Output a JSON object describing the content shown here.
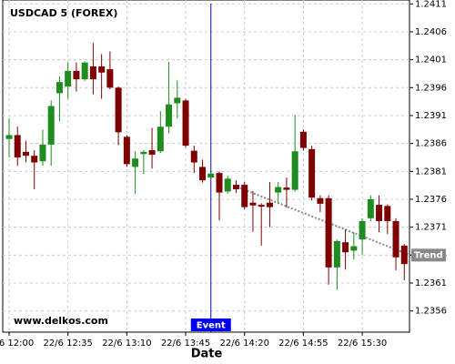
{
  "chart_data": {
    "type": "candlestick",
    "title": "USDCAD 5 (FOREX)",
    "watermark": "www.delkos.com",
    "x_label": "Date",
    "categories": [
      "22/6 12:00",
      null,
      null,
      null,
      null,
      null,
      null,
      "22/6 12:35",
      null,
      null,
      null,
      null,
      null,
      null,
      "22/6 13:10",
      null,
      null,
      null,
      null,
      null,
      null,
      "22/6 13:45",
      null,
      null,
      null,
      null,
      null,
      null,
      "22/6 14:20",
      null,
      null,
      null,
      null,
      null,
      null,
      "22/6 14:55",
      null,
      null,
      null,
      null,
      null,
      null,
      "22/6 15:30",
      null,
      null,
      null,
      null,
      null
    ],
    "open": [
      1.23868,
      1.23875,
      1.23845,
      1.23838,
      1.23828,
      1.23858,
      1.2395,
      1.23962,
      1.2399,
      1.23975,
      1.23998,
      1.23998,
      1.23993,
      1.2396,
      1.23872,
      1.23818,
      1.23841,
      1.23848,
      1.23846,
      1.2389,
      1.23932,
      1.23937,
      1.23847,
      1.23818,
      1.23799,
      1.23807,
      1.23774,
      1.23786,
      1.23786,
      1.23754,
      1.2375,
      1.23754,
      1.23772,
      1.23781,
      1.23777,
      1.23881,
      1.2385,
      1.23762,
      1.23762,
      1.23638,
      1.23683,
      1.23668,
      1.23688,
      1.23726,
      1.2375,
      1.23748,
      1.23721,
      1.23677
    ],
    "high": [
      1.23905,
      1.2389,
      1.23865,
      1.23848,
      1.23885,
      1.23937,
      1.2398,
      1.24005,
      1.24005,
      1.24007,
      1.2404,
      1.2402,
      1.24025,
      1.23962,
      1.23875,
      1.23846,
      1.23848,
      1.23888,
      1.23918,
      1.24006,
      1.23973,
      1.2394,
      1.23856,
      1.23831,
      1.23809,
      1.2381,
      1.23802,
      1.23794,
      1.23791,
      1.23775,
      1.23753,
      1.23791,
      1.23791,
      1.23799,
      1.23911,
      1.23885,
      1.23856,
      1.23767,
      1.23767,
      1.23688,
      1.23706,
      1.23701,
      1.23726,
      1.23767,
      1.23767,
      1.23751,
      1.23726,
      1.2368
    ],
    "low": [
      1.23835,
      1.2382,
      1.23826,
      1.23778,
      1.2382,
      1.2382,
      1.239,
      1.2394,
      1.23953,
      1.23972,
      1.23948,
      1.2394,
      1.23957,
      1.23857,
      1.23818,
      1.2377,
      1.23805,
      1.23815,
      1.23843,
      1.23878,
      1.23905,
      1.23853,
      1.23807,
      1.2379,
      1.23797,
      1.23722,
      1.2377,
      1.23771,
      1.23742,
      1.23702,
      1.23677,
      1.2371,
      1.23753,
      1.23745,
      1.23774,
      1.23847,
      1.23758,
      1.23737,
      1.23607,
      1.23598,
      1.23634,
      1.23652,
      1.2366,
      1.23721,
      1.23701,
      1.23698,
      1.23633,
      1.23615
    ],
    "close": [
      1.23875,
      1.23835,
      1.23838,
      1.23826,
      1.23858,
      1.23927,
      1.2397,
      1.2399,
      1.23975,
      1.24005,
      1.23975,
      1.23987,
      1.2396,
      1.2388,
      1.23823,
      1.23833,
      1.23845,
      1.2384,
      1.2389,
      1.2393,
      1.23942,
      1.23856,
      1.23826,
      1.23794,
      1.23806,
      1.23772,
      1.23797,
      1.23778,
      1.23746,
      1.23749,
      1.23747,
      1.23746,
      1.23782,
      1.23777,
      1.23846,
      1.23852,
      1.23763,
      1.23752,
      1.23638,
      1.23685,
      1.23665,
      1.23676,
      1.23721,
      1.2376,
      1.23721,
      1.23721,
      1.23656,
      1.23644
    ],
    "up_color": "#1e8c1e",
    "down_color": "#7f0000",
    "ylim": [
      1.23522,
      1.24117
    ],
    "yticks": [
      1.2356,
      1.2361,
      1.2366,
      1.2371,
      1.2376,
      1.2381,
      1.2386,
      1.2391,
      1.2396,
      1.2401,
      1.2406,
      1.2411
    ],
    "grid": true,
    "event": {
      "label": "Event",
      "x": 24,
      "color": "#0000ee"
    },
    "trend": {
      "label": "Trend",
      "x": [
        27.5,
        47.7
      ],
      "y": [
        1.2378,
        1.2366
      ],
      "color": "#888888"
    }
  }
}
